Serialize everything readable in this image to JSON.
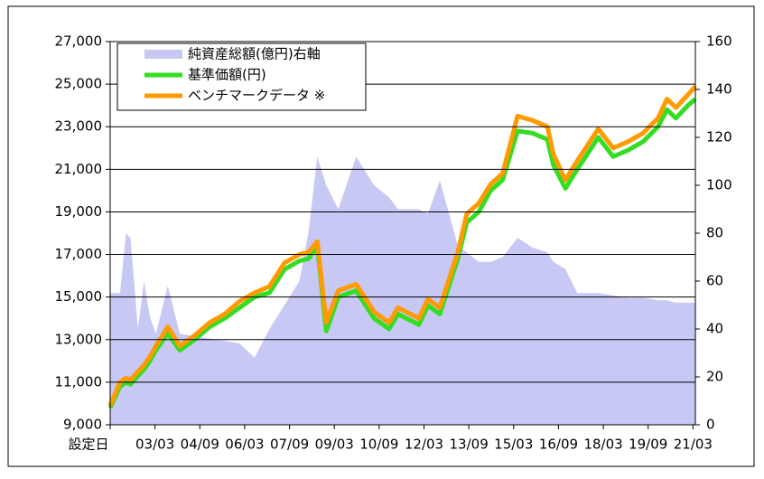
{
  "chart_data": {
    "type": "line",
    "x": [
      2001.67,
      2002.0,
      2002.2,
      2002.35,
      2002.6,
      2002.8,
      2003.0,
      2003.2,
      2003.6,
      2004.0,
      2004.5,
      2005.0,
      2005.5,
      2006.0,
      2006.5,
      2007.0,
      2007.5,
      2008.0,
      2008.3,
      2008.6,
      2008.9,
      2009.3,
      2009.9,
      2010.5,
      2011.0,
      2011.3,
      2012.0,
      2012.3,
      2012.7,
      2013.3,
      2013.6,
      2014.0,
      2014.4,
      2014.8,
      2015.3,
      2015.8,
      2016.3,
      2016.5,
      2016.9,
      2017.3,
      2018.0,
      2018.5,
      2019.0,
      2019.5,
      2020.0,
      2020.3,
      2020.6,
      2021.0,
      2021.25
    ],
    "series": [
      {
        "name": "純資産総額(億円)右軸",
        "type": "area",
        "axis": "y2",
        "color": "#c8c8f5",
        "values": [
          55,
          55,
          80,
          78,
          40,
          60,
          45,
          38,
          58,
          38,
          37,
          36,
          35,
          34,
          28,
          40,
          50,
          60,
          80,
          112,
          100,
          90,
          112,
          100,
          95,
          90,
          90,
          88,
          102,
          75,
          72,
          68,
          68,
          70,
          78,
          74,
          72,
          68,
          65,
          55,
          55,
          54,
          53,
          53,
          52,
          52,
          51,
          51,
          51
        ]
      },
      {
        "name": "基準価額(円)",
        "type": "line",
        "color": "#33dd22",
        "values": [
          9800,
          10800,
          11000,
          10900,
          11300,
          11600,
          12000,
          12500,
          13300,
          12500,
          13000,
          13600,
          14000,
          14500,
          15000,
          15200,
          16300,
          16700,
          16800,
          17400,
          13400,
          15000,
          15300,
          14000,
          13500,
          14200,
          13700,
          14600,
          14200,
          16800,
          18500,
          19000,
          20000,
          20500,
          22800,
          22700,
          22400,
          21200,
          20100,
          21000,
          22500,
          21600,
          21900,
          22300,
          23000,
          23800,
          23400,
          24000,
          24300
        ]
      },
      {
        "name": "ベンチマークデータ ※",
        "type": "line",
        "color": "#ff9a00",
        "values": [
          9900,
          11000,
          11200,
          11100,
          11500,
          11800,
          12200,
          12700,
          13600,
          12700,
          13200,
          13800,
          14200,
          14800,
          15200,
          15500,
          16600,
          17000,
          17100,
          17600,
          13800,
          15300,
          15600,
          14300,
          13800,
          14500,
          14000,
          14900,
          14500,
          17100,
          18900,
          19400,
          20300,
          20800,
          23500,
          23300,
          23000,
          21700,
          20500,
          21400,
          22900,
          22000,
          22300,
          22700,
          23400,
          24300,
          23900,
          24500,
          24900
        ]
      }
    ],
    "xlim": [
      2001.67,
      2021.25
    ],
    "xticks": [
      {
        "value": 2001.67,
        "label": "設定日"
      },
      {
        "value": 2003.17,
        "label": "03/03"
      },
      {
        "value": 2004.67,
        "label": "04/09"
      },
      {
        "value": 2006.17,
        "label": "06/03"
      },
      {
        "value": 2007.67,
        "label": "07/09"
      },
      {
        "value": 2009.17,
        "label": "09/03"
      },
      {
        "value": 2010.67,
        "label": "10/09"
      },
      {
        "value": 2012.17,
        "label": "12/03"
      },
      {
        "value": 2013.67,
        "label": "13/09"
      },
      {
        "value": 2015.17,
        "label": "15/03"
      },
      {
        "value": 2016.67,
        "label": "16/09"
      },
      {
        "value": 2018.17,
        "label": "18/03"
      },
      {
        "value": 2019.67,
        "label": "19/09"
      },
      {
        "value": 2021.17,
        "label": "21/03"
      }
    ],
    "ylim": [
      9000,
      27000
    ],
    "yticks": [
      {
        "value": 9000,
        "label": "9,000"
      },
      {
        "value": 11000,
        "label": "11,000"
      },
      {
        "value": 13000,
        "label": "13,000"
      },
      {
        "value": 15000,
        "label": "15,000"
      },
      {
        "value": 17000,
        "label": "17,000"
      },
      {
        "value": 19000,
        "label": "19,000"
      },
      {
        "value": 21000,
        "label": "21,000"
      },
      {
        "value": 23000,
        "label": "23,000"
      },
      {
        "value": 25000,
        "label": "25,000"
      },
      {
        "value": 27000,
        "label": "27,000"
      }
    ],
    "y2lim": [
      0,
      160
    ],
    "y2ticks": [
      0,
      20,
      40,
      60,
      80,
      100,
      120,
      140,
      160
    ],
    "grid": true,
    "legend": "upper left"
  }
}
